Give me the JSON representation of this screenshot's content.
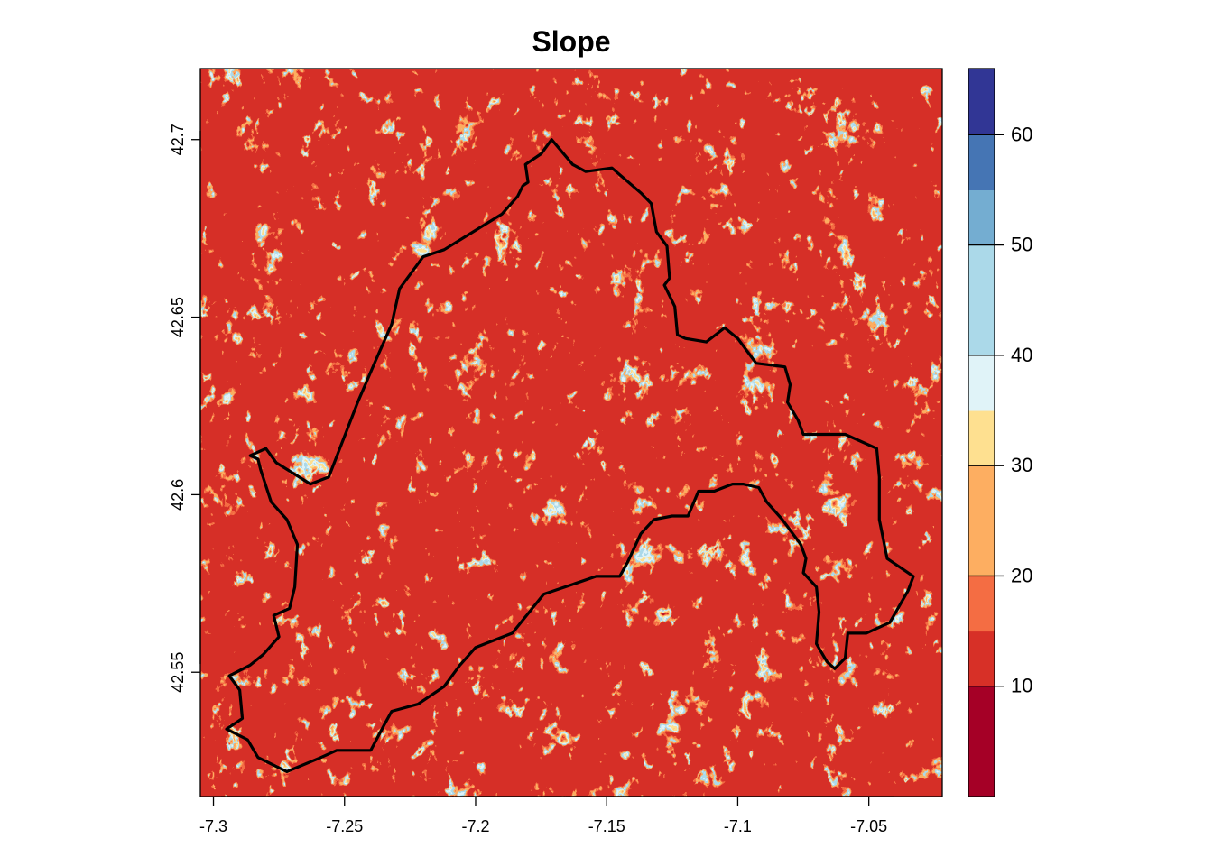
{
  "map": {
    "title": "Slope",
    "x_ticks": [
      "-7.3",
      "-7.25",
      "-7.2",
      "-7.15",
      "-7.1",
      "-7.05"
    ],
    "y_ticks": [
      "42.55",
      "42.6",
      "42.65",
      "42.7"
    ]
  },
  "chart_data": {
    "type": "heatmap",
    "title": "Slope",
    "xlim": [
      -7.305,
      -7.022
    ],
    "ylim": [
      42.515,
      42.72
    ],
    "x_tick_values": [
      -7.3,
      -7.25,
      -7.2,
      -7.15,
      -7.1,
      -7.05
    ],
    "y_tick_values": [
      42.55,
      42.6,
      42.65,
      42.7
    ],
    "colorbar": {
      "range": [
        0,
        66
      ],
      "breaks": [
        0,
        5,
        10,
        15,
        20,
        25,
        30,
        35,
        40,
        45,
        50,
        55,
        60,
        66
      ],
      "colors": [
        "#a50026",
        "#d73027",
        "#f46d43",
        "#fdae61",
        "#fee090",
        "#e0f3f8",
        "#abd9e9",
        "#74add1",
        "#4575b4",
        "#313695"
      ],
      "tick_labels": [
        "10",
        "20",
        "30",
        "40",
        "50",
        "60"
      ],
      "tick_values": [
        10,
        20,
        30,
        40,
        50,
        60
      ]
    },
    "boundary_color": "#000000",
    "boundary_lonlat": [
      [
        -7.175,
        42.696
      ],
      [
        -7.171,
        42.7
      ],
      [
        -7.163,
        42.693
      ],
      [
        -7.158,
        42.691
      ],
      [
        -7.148,
        42.692
      ],
      [
        -7.137,
        42.685
      ],
      [
        -7.133,
        42.682
      ],
      [
        -7.131,
        42.674
      ],
      [
        -7.127,
        42.67
      ],
      [
        -7.126,
        42.661
      ],
      [
        -7.128,
        42.659
      ],
      [
        -7.124,
        42.653
      ],
      [
        -7.123,
        42.645
      ],
      [
        -7.12,
        42.644
      ],
      [
        -7.112,
        42.643
      ],
      [
        -7.105,
        42.647
      ],
      [
        -7.1,
        42.644
      ],
      [
        -7.093,
        42.637
      ],
      [
        -7.082,
        42.636
      ],
      [
        -7.08,
        42.631
      ],
      [
        -7.081,
        42.626
      ],
      [
        -7.077,
        42.621
      ],
      [
        -7.075,
        42.617
      ],
      [
        -7.059,
        42.617
      ],
      [
        -7.047,
        42.613
      ],
      [
        -7.046,
        42.605
      ],
      [
        -7.046,
        42.593
      ],
      [
        -7.043,
        42.582
      ],
      [
        -7.033,
        42.577
      ],
      [
        -7.035,
        42.573
      ],
      [
        -7.042,
        42.564
      ],
      [
        -7.051,
        42.561
      ],
      [
        -7.058,
        42.561
      ],
      [
        -7.059,
        42.554
      ],
      [
        -7.063,
        42.551
      ],
      [
        -7.066,
        42.553
      ],
      [
        -7.07,
        42.558
      ],
      [
        -7.069,
        42.567
      ],
      [
        -7.07,
        42.574
      ],
      [
        -7.075,
        42.578
      ],
      [
        -7.074,
        42.582
      ],
      [
        -7.076,
        42.586
      ],
      [
        -7.083,
        42.593
      ],
      [
        -7.089,
        42.598
      ],
      [
        -7.092,
        42.602
      ],
      [
        -7.098,
        42.603
      ],
      [
        -7.102,
        42.603
      ],
      [
        -7.109,
        42.601
      ],
      [
        -7.115,
        42.601
      ],
      [
        -7.119,
        42.594
      ],
      [
        -7.125,
        42.594
      ],
      [
        -7.132,
        42.593
      ],
      [
        -7.137,
        42.589
      ],
      [
        -7.142,
        42.581
      ],
      [
        -7.145,
        42.577
      ],
      [
        -7.154,
        42.577
      ],
      [
        -7.162,
        42.575
      ],
      [
        -7.174,
        42.572
      ],
      [
        -7.186,
        42.561
      ],
      [
        -7.2,
        42.557
      ],
      [
        -7.206,
        42.552
      ],
      [
        -7.212,
        42.546
      ],
      [
        -7.222,
        42.541
      ],
      [
        -7.232,
        42.539
      ],
      [
        -7.235,
        42.535
      ],
      [
        -7.24,
        42.528
      ],
      [
        -7.253,
        42.528
      ],
      [
        -7.259,
        42.526
      ],
      [
        -7.272,
        42.522
      ],
      [
        -7.283,
        42.526
      ],
      [
        -7.287,
        42.531
      ],
      [
        -7.295,
        42.534
      ],
      [
        -7.289,
        42.537
      ],
      [
        -7.29,
        42.545
      ],
      [
        -7.294,
        42.549
      ],
      [
        -7.286,
        42.552
      ],
      [
        -7.281,
        42.555
      ],
      [
        -7.275,
        42.56
      ],
      [
        -7.277,
        42.566
      ],
      [
        -7.271,
        42.568
      ],
      [
        -7.269,
        42.574
      ],
      [
        -7.268,
        42.586
      ],
      [
        -7.272,
        42.593
      ],
      [
        -7.278,
        42.598
      ],
      [
        -7.282,
        42.607
      ],
      [
        -7.283,
        42.61
      ],
      [
        -7.286,
        42.611
      ],
      [
        -7.28,
        42.613
      ],
      [
        -7.276,
        42.609
      ],
      [
        -7.263,
        42.603
      ],
      [
        -7.256,
        42.605
      ],
      [
        -7.245,
        42.626
      ],
      [
        -7.238,
        42.638
      ],
      [
        -7.232,
        42.648
      ],
      [
        -7.229,
        42.658
      ],
      [
        -7.22,
        42.667
      ],
      [
        -7.212,
        42.669
      ],
      [
        -7.19,
        42.679
      ],
      [
        -7.184,
        42.684
      ],
      [
        -7.182,
        42.687
      ],
      [
        -7.18,
        42.688
      ],
      [
        -7.181,
        42.693
      ],
      [
        -7.175,
        42.696
      ]
    ]
  }
}
